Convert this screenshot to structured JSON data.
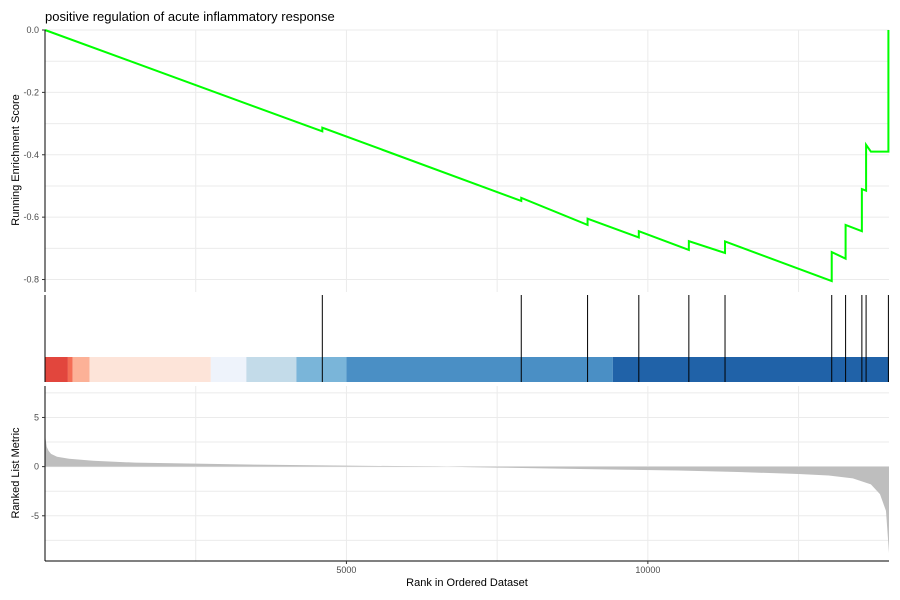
{
  "chart_data": {
    "type": "line",
    "title": "positive regulation of acute inflammatory response",
    "xlabel": "Rank in Ordered Dataset",
    "xlim": [
      0,
      14000
    ],
    "x_ticks": [
      5000,
      10000
    ],
    "x_tick_labels": [
      "5000",
      "10000"
    ],
    "grid": true,
    "panels": {
      "running_score": {
        "ylabel": "Running Enrichment Score",
        "ylim": [
          -0.84,
          0.0
        ],
        "y_ticks": [
          0.0,
          -0.2,
          -0.4,
          -0.6,
          -0.8
        ],
        "y_tick_labels": [
          "0.0",
          "-0.2",
          "-0.4",
          "-0.6",
          "-0.8"
        ],
        "line_color": "#00ff00",
        "series": [
          {
            "x": [
              0,
              4600,
              4600,
              7900,
              7900,
              9000,
              9000,
              9850,
              9850,
              10680,
              10680,
              11280,
              11280,
              13050,
              13050,
              13280,
              13280,
              13550,
              13550,
              13620,
              13620,
              13700,
              13700,
              13990,
              13990
            ],
            "values": [
              0.0,
              -0.325,
              -0.313,
              -0.548,
              -0.538,
              -0.625,
              -0.605,
              -0.665,
              -0.645,
              -0.705,
              -0.677,
              -0.715,
              -0.678,
              -0.805,
              -0.712,
              -0.733,
              -0.625,
              -0.645,
              -0.51,
              -0.515,
              -0.368,
              -0.39,
              -0.39,
              -0.39,
              0.0
            ]
          }
        ]
      },
      "hits": {
        "positions": [
          4600,
          7900,
          9000,
          9850,
          10680,
          11280,
          13050,
          13280,
          13550,
          13620,
          13990
        ]
      },
      "rank_color_bar": {
        "segments": [
          {
            "start": 0,
            "end": 380,
            "color": "#e2463d"
          },
          {
            "start": 380,
            "end": 460,
            "color": "#f46d55"
          },
          {
            "start": 460,
            "end": 740,
            "color": "#fcb197"
          },
          {
            "start": 740,
            "end": 2750,
            "color": "#fde4d9"
          },
          {
            "start": 2750,
            "end": 3340,
            "color": "#eef3fb"
          },
          {
            "start": 3340,
            "end": 4170,
            "color": "#c3dbe9"
          },
          {
            "start": 4170,
            "end": 5000,
            "color": "#7ab5d9"
          },
          {
            "start": 5000,
            "end": 9420,
            "color": "#4a8fc5"
          },
          {
            "start": 9420,
            "end": 14000,
            "color": "#2062a8"
          }
        ]
      },
      "ranked_metric": {
        "ylabel": "Ranked List Metric",
        "ylim": [
          -9.6,
          8.2
        ],
        "y_ticks": [
          5,
          0,
          -5
        ],
        "y_tick_labels": [
          "5",
          "0",
          "-5"
        ],
        "fill_color": "#bebebe",
        "series": [
          {
            "x": [
              0,
              10,
              30,
              60,
              100,
              200,
              400,
              800,
              1500,
              2500,
              3500,
              5000,
              6500,
              7000,
              7500,
              8500,
              9500,
              10500,
              11500,
              12500,
              13000,
              13400,
              13700,
              13850,
              13950,
              14000
            ],
            "values": [
              3.8,
              2.8,
              2.0,
              1.6,
              1.3,
              1.0,
              0.8,
              0.6,
              0.4,
              0.3,
              0.2,
              0.1,
              0.02,
              -0.05,
              -0.1,
              -0.2,
              -0.3,
              -0.4,
              -0.55,
              -0.75,
              -0.9,
              -1.2,
              -1.8,
              -2.8,
              -4.5,
              -8.8
            ]
          }
        ]
      }
    }
  }
}
